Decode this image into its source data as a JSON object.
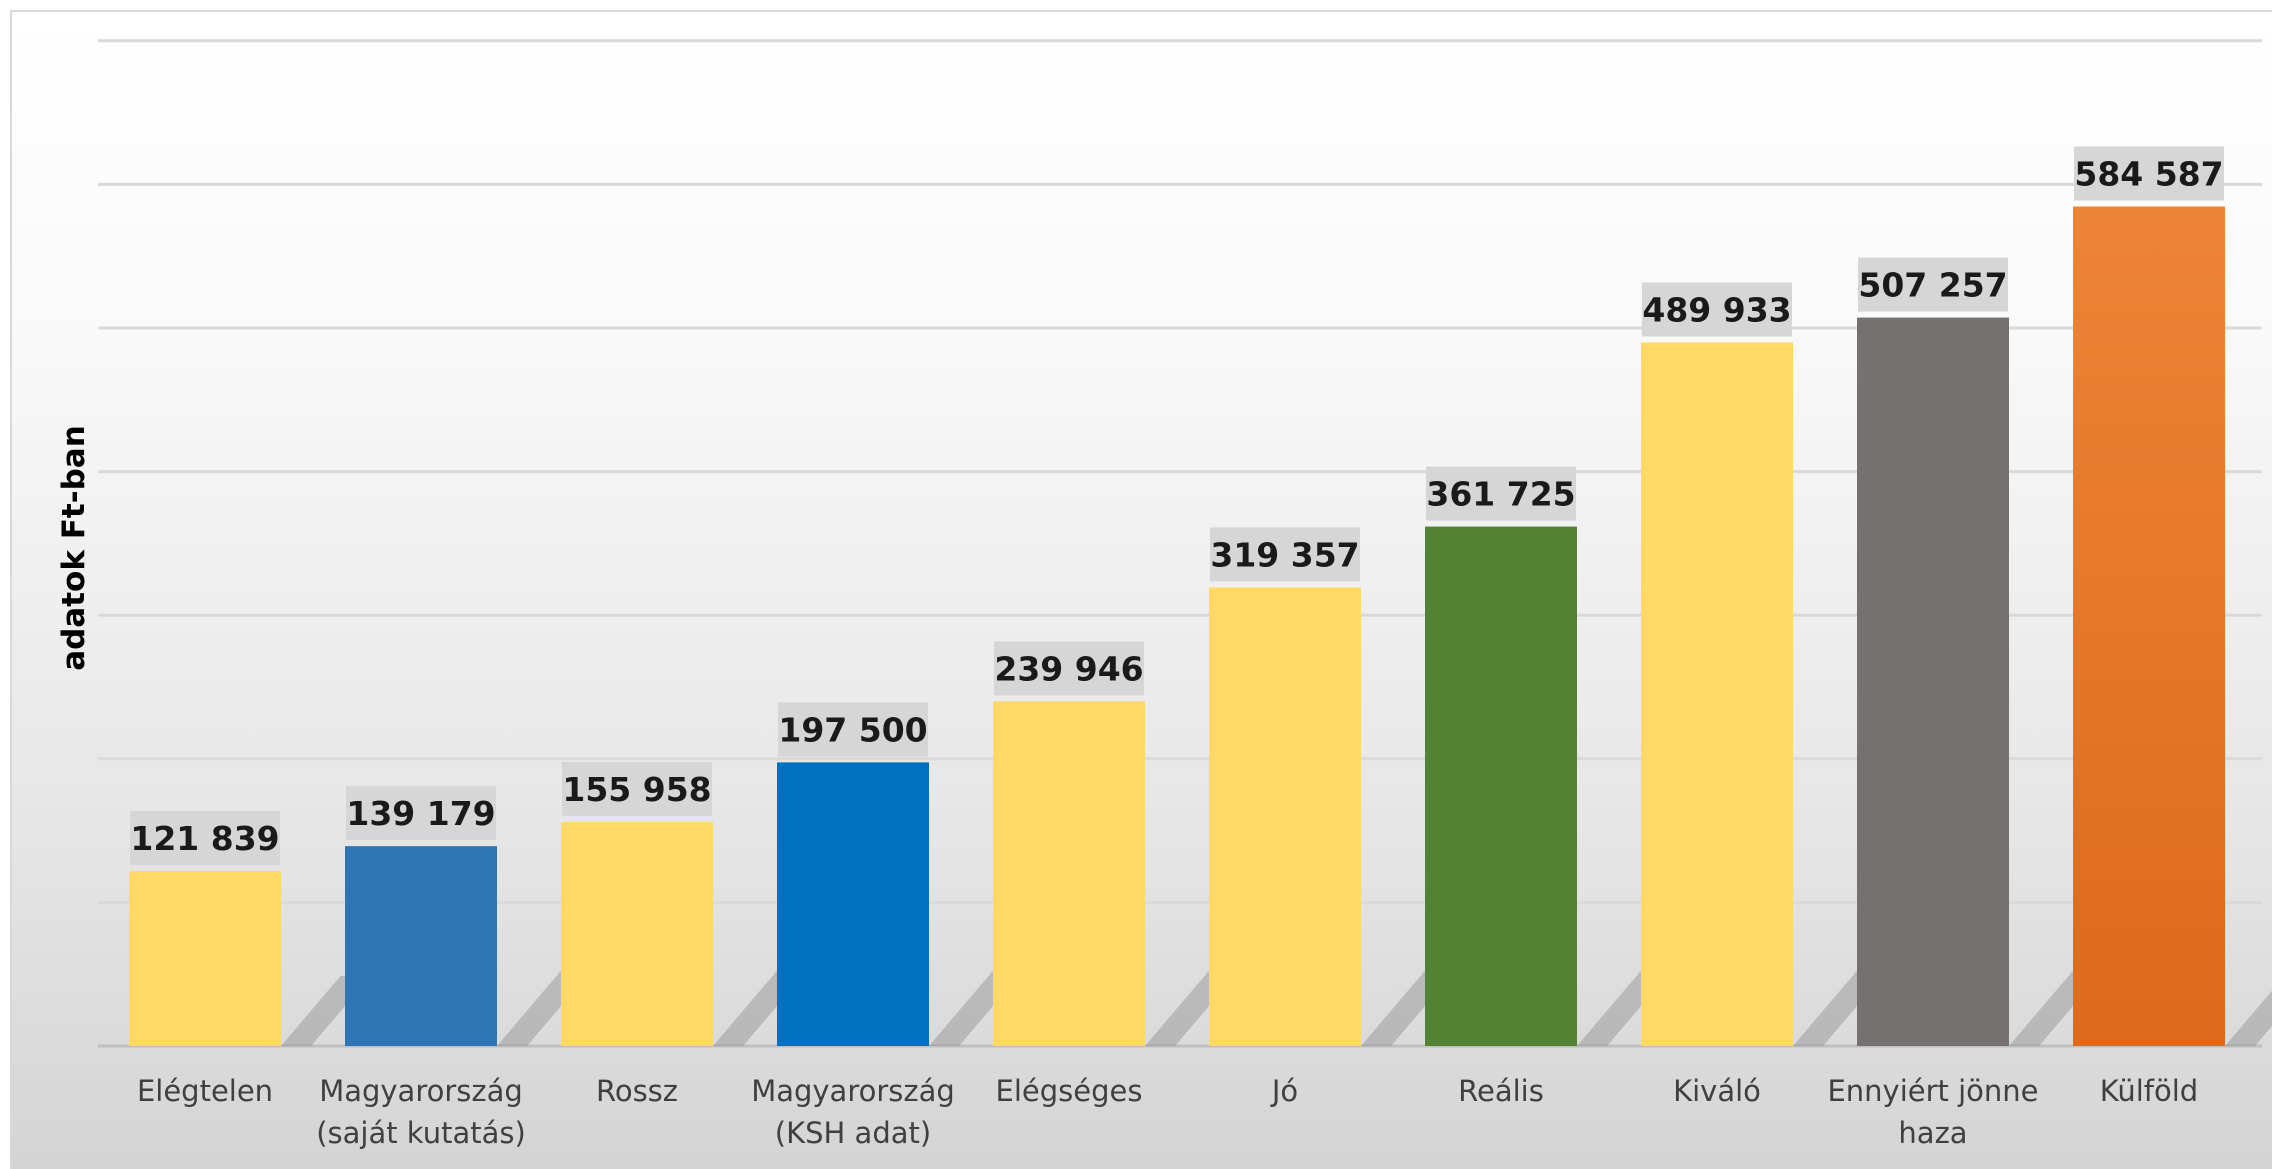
{
  "chart_data": {
    "type": "bar",
    "title": "",
    "xlabel": "",
    "ylabel": "adatok Ft-ban",
    "categories": [
      [
        "Elégtelen"
      ],
      [
        "Magyarország",
        "(saját kutatás)"
      ],
      [
        "Rossz"
      ],
      [
        "Magyarország",
        "(KSH adat)"
      ],
      [
        "Elégséges"
      ],
      [
        "Jó"
      ],
      [
        "Reális"
      ],
      [
        "Kiváló"
      ],
      [
        "Ennyiért jönne",
        "haza"
      ],
      [
        "Külföld"
      ]
    ],
    "values": [
      121839,
      139179,
      155958,
      197500,
      239946,
      319357,
      361725,
      489933,
      507257,
      584587
    ],
    "value_labels": [
      "121 839",
      "139 179",
      "155 958",
      "197 500",
      "239 946",
      "319 357",
      "361 725",
      "489 933",
      "507 257",
      "584 587"
    ],
    "colors": [
      "#ffd966",
      "#2e75b6",
      "#ffd966",
      "#0070c0",
      "#ffd966",
      "#ffd966",
      "#548235",
      "#ffd966",
      "#767171",
      "#ed7d31"
    ],
    "ylim": [
      0,
      700000
    ],
    "y_gridline_step": 100000,
    "grid": true,
    "y_tick_labels_shown": false,
    "legend": "none"
  }
}
